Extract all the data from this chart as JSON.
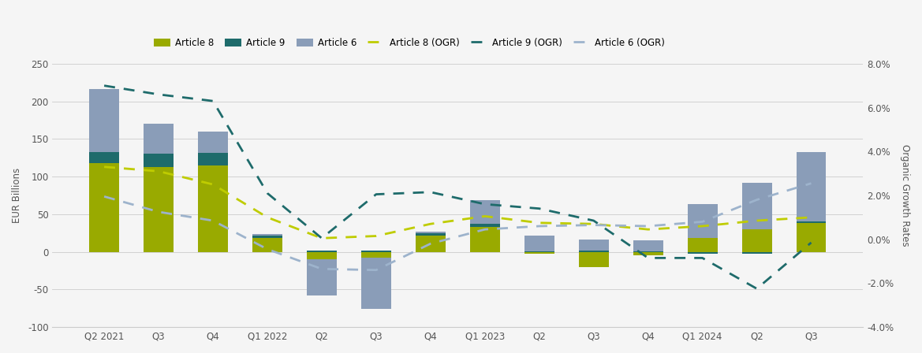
{
  "categories": [
    "Q2 2021",
    "Q3",
    "Q4",
    "Q1 2022",
    "Q2",
    "Q3",
    "Q4",
    "Q1 2023",
    "Q2",
    "Q3",
    "Q4",
    "Q1 2024",
    "Q2",
    "Q3"
  ],
  "art8": [
    118,
    113,
    115,
    18,
    -10,
    -8,
    22,
    33,
    -3,
    -20,
    -5,
    18,
    30,
    38
  ],
  "art9": [
    15,
    17,
    17,
    4,
    2,
    2,
    3,
    4,
    1,
    2,
    1,
    -3,
    -3,
    2
  ],
  "art6": [
    83,
    40,
    28,
    2,
    -48,
    -68,
    2,
    32,
    21,
    14,
    14,
    45,
    62,
    93
  ],
  "art8_ogr": [
    3.3,
    3.1,
    2.5,
    1.0,
    0.05,
    0.15,
    0.7,
    1.05,
    0.75,
    0.7,
    0.45,
    0.6,
    0.85,
    1.0
  ],
  "art9_ogr": [
    7.0,
    6.6,
    6.3,
    2.1,
    0.05,
    2.05,
    2.15,
    1.6,
    1.4,
    0.85,
    -0.85,
    -0.85,
    -2.25,
    -0.15
  ],
  "art6_ogr": [
    1.95,
    1.25,
    0.85,
    -0.45,
    -1.35,
    -1.4,
    -0.2,
    0.45,
    0.6,
    0.65,
    0.6,
    0.8,
    1.8,
    2.55
  ],
  "color_art8": "#99aa00",
  "color_art9": "#1e6b6b",
  "color_art6": "#8a9db8",
  "color_art8_ogr": "#bfcc00",
  "color_art9_ogr": "#1e6b6b",
  "color_art6_ogr": "#9db3cc",
  "ylabel_left": "EUR Billions",
  "ylabel_right": "Organic Growth Rates",
  "ylim_left": [
    -100,
    250
  ],
  "ylim_right": [
    -4.0,
    8.0
  ],
  "yticks_left": [
    -100,
    -50,
    0,
    50,
    100,
    150,
    200,
    250
  ],
  "yticks_right": [
    -4.0,
    -2.0,
    0.0,
    2.0,
    4.0,
    6.0,
    8.0
  ],
  "legend_labels": [
    "Article 8",
    "Article 9",
    "Article 6",
    "Article 8 (OGR)",
    "Article 9 (OGR)",
    "Article 6 (OGR)"
  ],
  "background_color": "#f5f5f5",
  "grid_color": "#cccccc"
}
